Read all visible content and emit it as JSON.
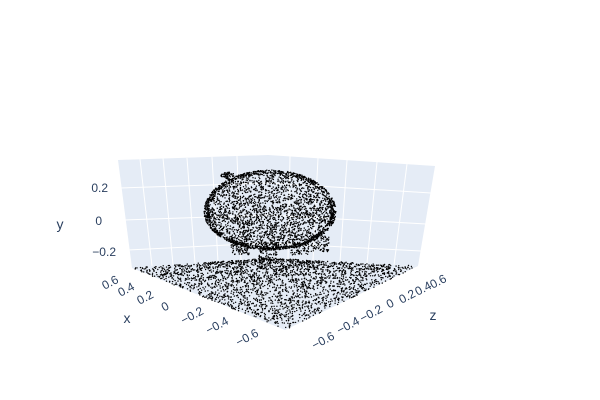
{
  "chart_data": {
    "type": "scatter",
    "subtype": "scatter3d",
    "title": "",
    "marker_color": "#000000",
    "background_color": "#e5ecf6",
    "grid": true,
    "axes": {
      "x": {
        "label": "x",
        "ticks": [
          "0.6",
          "0.4",
          "0.2",
          "0",
          "−0.2",
          "−0.4",
          "−0.6"
        ],
        "range": [
          -0.7,
          0.7
        ]
      },
      "y": {
        "label": "y",
        "ticks": [
          "0.2",
          "0",
          "−0.2"
        ],
        "range": [
          -0.3,
          0.3
        ]
      },
      "z": {
        "label": "z",
        "ticks": [
          "0.6",
          "0.4",
          "0.2",
          "0",
          "−0.2",
          "−0.4",
          "−0.6"
        ],
        "range": [
          -0.7,
          0.7
        ]
      }
    },
    "series": [
      {
        "description_points": "dense point cloud: flat plane at y≈-0.3 plus a rounded blob centered near y≈0.05"
      }
    ]
  }
}
